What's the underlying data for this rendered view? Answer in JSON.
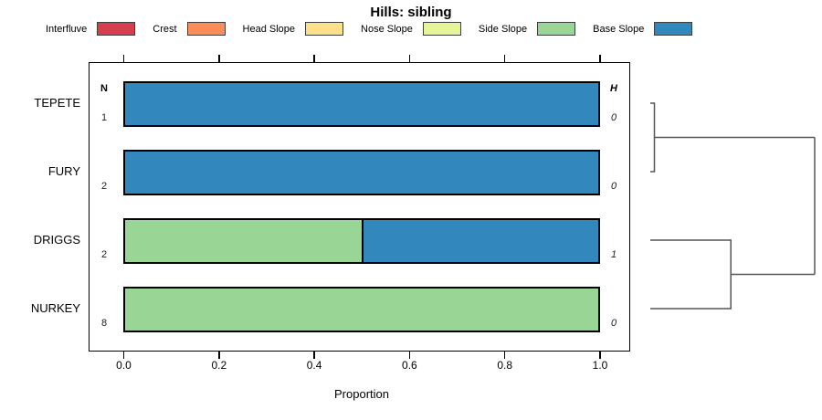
{
  "title": "Hills: sibling",
  "legend": {
    "items": [
      {
        "label": "Interfluve",
        "color": "#D53E4F"
      },
      {
        "label": "Crest",
        "color": "#FC8D59"
      },
      {
        "label": "Head Slope",
        "color": "#FEE08B"
      },
      {
        "label": "Nose Slope",
        "color": "#E6F598"
      },
      {
        "label": "Side Slope",
        "color": "#99D594"
      },
      {
        "label": "Base Slope",
        "color": "#3288BD"
      }
    ]
  },
  "chart_data": {
    "type": "bar",
    "orientation": "horizontal",
    "stacked": true,
    "title": "Hills: sibling",
    "xlabel": "Proportion",
    "xlim": [
      0,
      1
    ],
    "xtick_labels": [
      "0.0",
      "0.2",
      "0.4",
      "0.6",
      "0.8",
      "1.0"
    ],
    "grid": false,
    "legend_position": "top",
    "categories": [
      "TEPETE",
      "FURY",
      "DRIGGS",
      "NURKEY"
    ],
    "columns": {
      "n": {
        "header": "N",
        "values": [
          "1",
          "2",
          "2",
          "8"
        ]
      },
      "h": {
        "header": "H",
        "values": [
          "0",
          "0",
          "1",
          "0"
        ]
      }
    },
    "series": [
      {
        "name": "Interfluve",
        "color": "#D53E4F",
        "values": [
          0,
          0,
          0,
          0
        ]
      },
      {
        "name": "Crest",
        "color": "#FC8D59",
        "values": [
          0,
          0,
          0,
          0
        ]
      },
      {
        "name": "Head Slope",
        "color": "#FEE08B",
        "values": [
          0,
          0,
          0,
          0
        ]
      },
      {
        "name": "Nose Slope",
        "color": "#E6F598",
        "values": [
          0,
          0,
          0,
          0
        ]
      },
      {
        "name": "Side Slope",
        "color": "#99D594",
        "values": [
          0,
          0,
          0.5,
          1
        ]
      },
      {
        "name": "Base Slope",
        "color": "#3288BD",
        "values": [
          1,
          1,
          0.5,
          0
        ]
      }
    ],
    "dendrogram": {
      "position": "right",
      "line_color": "#555555",
      "merges": [
        {
          "join": [
            "TEPETE",
            "FURY"
          ],
          "relative_height": 0.025
        },
        {
          "join": [
            "DRIGGS",
            "NURKEY"
          ],
          "relative_height": 0.49
        },
        {
          "join": [
            "TEPETE+FURY",
            "DRIGGS+NURKEY"
          ],
          "relative_height": 1.0
        }
      ]
    }
  }
}
